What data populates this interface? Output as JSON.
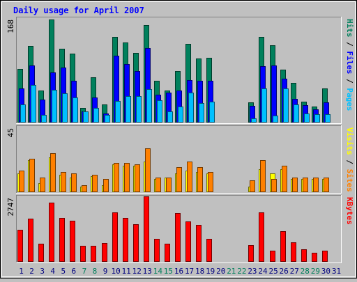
{
  "title": "Daily usage for April 2007",
  "chart_data": {
    "type": "bar",
    "title": "Daily usage for April 2007",
    "categories": [
      "1",
      "2",
      "3",
      "4",
      "5",
      "6",
      "7",
      "8",
      "9",
      "10",
      "11",
      "12",
      "13",
      "14",
      "15",
      "16",
      "17",
      "18",
      "19",
      "20",
      "21",
      "22",
      "23",
      "24",
      "25",
      "26",
      "27",
      "28",
      "29",
      "30",
      "31"
    ],
    "weekend_days": [
      "7",
      "8",
      "14",
      "15",
      "21",
      "22",
      "28",
      "29"
    ],
    "panels": [
      {
        "id": "hits",
        "ymax_label": "168",
        "ymax": 168,
        "right_label_parts": [
          {
            "text": "Hits",
            "color": "#00805c"
          },
          {
            "text": " / ",
            "color": "#000000"
          },
          {
            "text": "Files",
            "color": "#0000ff"
          },
          {
            "text": " / ",
            "color": "#000000"
          },
          {
            "text": "Pages",
            "color": "#00c0ff"
          }
        ],
        "series": [
          {
            "name": "Hits",
            "color": "#00805c",
            "values": [
              86,
              123,
              51,
              166,
              119,
              111,
              24,
              73,
              29,
              138,
              129,
              112,
              157,
              67,
              51,
              83,
              126,
              103,
              104,
              null,
              null,
              null,
              32,
              138,
              124,
              85,
              64,
              34,
              26,
              55,
              null
            ]
          },
          {
            "name": "Files",
            "color": "#0000ff",
            "values": [
              55,
              92,
              37,
              81,
              88,
              67,
              18,
              40,
              15,
              108,
              94,
              83,
              120,
              45,
              48,
              51,
              68,
              67,
              67,
              null,
              null,
              null,
              27,
              91,
              92,
              70,
              38,
              28,
              21,
              33,
              null
            ]
          },
          {
            "name": "Pages",
            "color": "#00c0ff",
            "values": [
              29,
              60,
              12,
              53,
              47,
              40,
              18,
              24,
              12,
              35,
              43,
              42,
              54,
              36,
              18,
              26,
              48,
              31,
              34,
              null,
              null,
              null,
              7,
              55,
              11,
              55,
              29,
              14,
              13,
              13,
              null
            ]
          }
        ]
      },
      {
        "id": "visits",
        "ymax_label": "45",
        "ymax": 45,
        "right_label_parts": [
          {
            "text": "Visits",
            "color": "#ffff00"
          },
          {
            "text": " / ",
            "color": "#000000"
          },
          {
            "text": "Sites",
            "color": "#ff8000"
          }
        ],
        "series": [
          {
            "name": "Visits",
            "color": "#ffff00",
            "values": [
              13,
              22,
              6,
              24,
              12,
              10,
              4,
              11,
              5,
              19,
              18,
              18,
              21,
              9,
              10,
              13,
              15,
              14,
              13,
              null,
              null,
              null,
              4,
              16,
              13,
              16,
              9,
              9,
              9,
              9,
              null
            ]
          },
          {
            "name": "Sites",
            "color": "#ff8000",
            "values": [
              15,
              23,
              10,
              27,
              14,
              13,
              5,
              12,
              9,
              20,
              20,
              19,
              30,
              10,
              10,
              17,
              21,
              17,
              14,
              null,
              null,
              null,
              8,
              22,
              9,
              18,
              10,
              10,
              10,
              10,
              null
            ]
          }
        ]
      },
      {
        "id": "kbytes",
        "ymax_label": "2747",
        "ymax": 2747,
        "right_label_parts": [
          {
            "text": "KBytes",
            "color": "#ff0000"
          }
        ],
        "series": [
          {
            "name": "KBytes",
            "color": "#ff0000",
            "values": [
              1350,
              1800,
              750,
              2470,
              1830,
              1720,
              680,
              680,
              790,
              2070,
              1840,
              1580,
              2747,
              960,
              750,
              2050,
              1700,
              1560,
              970,
              null,
              null,
              null,
              700,
              2070,
              480,
              1300,
              830,
              530,
              380,
              480,
              null
            ]
          }
        ]
      }
    ]
  }
}
